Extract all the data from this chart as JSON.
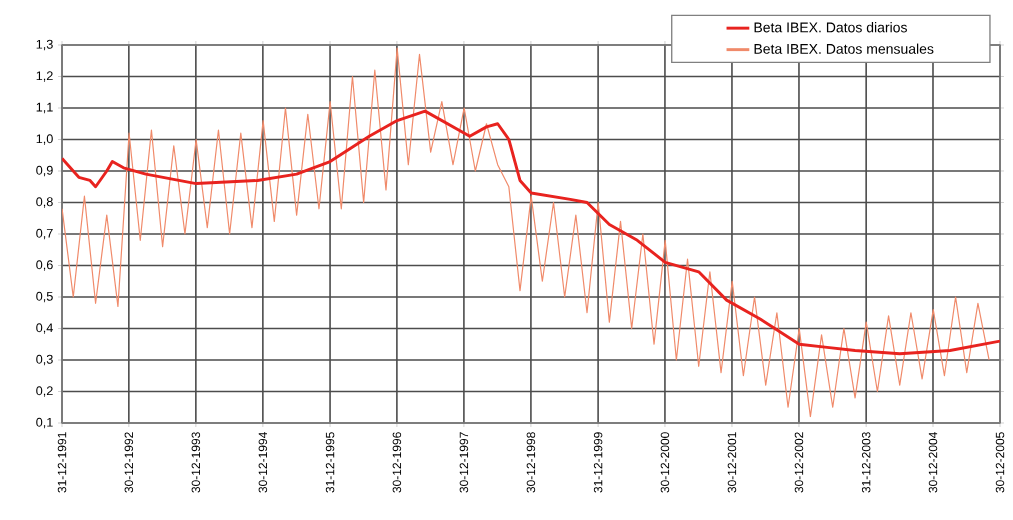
{
  "chart_data": {
    "type": "line",
    "legend": "top right",
    "grid": true,
    "marker": "none",
    "line_style": "solid",
    "xlim": [
      "1991-12-31",
      "2005-12-30"
    ],
    "xticks": [
      {
        "value": "1991-12-31",
        "label": "31-12-1991"
      },
      {
        "value": "1992-12-30",
        "label": "30-12-1992"
      },
      {
        "value": "1993-12-30",
        "label": "30-12-1993"
      },
      {
        "value": "1994-12-30",
        "label": "30-12-1994"
      },
      {
        "value": "1995-12-31",
        "label": "31-12-1995"
      },
      {
        "value": "1996-12-30",
        "label": "30-12-1996"
      },
      {
        "value": "1997-12-30",
        "label": "30-12-1997"
      },
      {
        "value": "1998-12-30",
        "label": "30-12-1998"
      },
      {
        "value": "1999-12-31",
        "label": "31-12-1999"
      },
      {
        "value": "2000-12-30",
        "label": "30-12-2000"
      },
      {
        "value": "2001-12-30",
        "label": "30-12-2001"
      },
      {
        "value": "2002-12-30",
        "label": "30-12-2002"
      },
      {
        "value": "2003-12-31",
        "label": "31-12-2003"
      },
      {
        "value": "2004-12-30",
        "label": "30-12-2004"
      },
      {
        "value": "2005-12-30",
        "label": "30-12-2005"
      }
    ],
    "ylim": [
      0.1,
      1.3
    ],
    "yticks": [
      {
        "value": 0.1,
        "label": "0,1"
      },
      {
        "value": 0.2,
        "label": "0,2"
      },
      {
        "value": 0.3,
        "label": "0,3"
      },
      {
        "value": 0.4,
        "label": "0,4"
      },
      {
        "value": 0.5,
        "label": "0,5"
      },
      {
        "value": 0.6,
        "label": "0,6"
      },
      {
        "value": 0.7,
        "label": "0,7"
      },
      {
        "value": 0.8,
        "label": "0,8"
      },
      {
        "value": 0.9,
        "label": "0,9"
      },
      {
        "value": 1.0,
        "label": "1,0"
      },
      {
        "value": 1.1,
        "label": "1,1"
      },
      {
        "value": 1.2,
        "label": "1,2"
      },
      {
        "value": 1.3,
        "label": "1,3"
      }
    ],
    "series": [
      {
        "name": "Beta IBEX. Datos diarios",
        "color": "#e8231f",
        "x": [
          "1992-01",
          "1992-02",
          "1992-04",
          "1992-06",
          "1992-07",
          "1992-09",
          "1992-10",
          "1992-12",
          "1993-04",
          "1994-01",
          "1994-12",
          "1995-07",
          "1996-01",
          "1996-08",
          "1997-01",
          "1997-06",
          "1997-10",
          "1998-02",
          "1998-05",
          "1998-07",
          "1998-09",
          "1998-11",
          "1999-01",
          "1999-08",
          "1999-11",
          "2000-03",
          "2000-08",
          "2001-01",
          "2001-07",
          "2001-12",
          "2002-06",
          "2003-01",
          "2003-06",
          "2003-11",
          "2004-07",
          "2005-04",
          "2005-12-30"
        ],
        "values": [
          0.94,
          0.92,
          0.88,
          0.87,
          0.85,
          0.9,
          0.93,
          0.91,
          0.89,
          0.86,
          0.87,
          0.89,
          0.93,
          1.01,
          1.06,
          1.09,
          1.05,
          1.01,
          1.04,
          1.05,
          1.0,
          0.87,
          0.83,
          0.81,
          0.8,
          0.73,
          0.68,
          0.61,
          0.58,
          0.49,
          0.43,
          0.35,
          0.34,
          0.33,
          0.32,
          0.33,
          0.36
        ]
      },
      {
        "name": "Beta IBEX. Datos mensuales",
        "color": "#f08a6a",
        "x": [
          "1992-01",
          "1992-03",
          "1992-05",
          "1992-07",
          "1992-09",
          "1992-11",
          "1993-01",
          "1993-03",
          "1993-05",
          "1993-07",
          "1993-09",
          "1993-11",
          "1994-01",
          "1994-03",
          "1994-05",
          "1994-07",
          "1994-09",
          "1994-11",
          "1995-01",
          "1995-03",
          "1995-05",
          "1995-07",
          "1995-09",
          "1995-11",
          "1996-01",
          "1996-03",
          "1996-05",
          "1996-07",
          "1996-09",
          "1996-11",
          "1997-01",
          "1997-03",
          "1997-05",
          "1997-07",
          "1997-09",
          "1997-11",
          "1998-01",
          "1998-03",
          "1998-05",
          "1998-07",
          "1998-09",
          "1998-11",
          "1999-01",
          "1999-03",
          "1999-05",
          "1999-07",
          "1999-09",
          "1999-11",
          "2000-01",
          "2000-03",
          "2000-05",
          "2000-07",
          "2000-09",
          "2000-11",
          "2001-01",
          "2001-03",
          "2001-05",
          "2001-07",
          "2001-09",
          "2001-11",
          "2002-01",
          "2002-03",
          "2002-05",
          "2002-07",
          "2002-09",
          "2002-11",
          "2003-01",
          "2003-03",
          "2003-05",
          "2003-07",
          "2003-09",
          "2003-11",
          "2004-01",
          "2004-03",
          "2004-05",
          "2004-07",
          "2004-09",
          "2004-11",
          "2005-01",
          "2005-03",
          "2005-05",
          "2005-07",
          "2005-09",
          "2005-11"
        ],
        "values": [
          0.78,
          0.5,
          0.82,
          0.48,
          0.76,
          0.47,
          1.02,
          0.68,
          1.03,
          0.66,
          0.98,
          0.7,
          1.0,
          0.72,
          1.03,
          0.7,
          1.02,
          0.72,
          1.06,
          0.74,
          1.1,
          0.76,
          1.08,
          0.78,
          1.12,
          0.78,
          1.2,
          0.8,
          1.22,
          0.84,
          1.29,
          0.92,
          1.27,
          0.96,
          1.12,
          0.92,
          1.1,
          0.9,
          1.05,
          0.92,
          0.85,
          0.52,
          0.82,
          0.55,
          0.8,
          0.5,
          0.76,
          0.45,
          0.8,
          0.42,
          0.74,
          0.4,
          0.7,
          0.35,
          0.68,
          0.3,
          0.62,
          0.28,
          0.58,
          0.26,
          0.55,
          0.25,
          0.5,
          0.22,
          0.45,
          0.15,
          0.4,
          0.12,
          0.38,
          0.15,
          0.4,
          0.18,
          0.42,
          0.2,
          0.44,
          0.22,
          0.45,
          0.24,
          0.46,
          0.25,
          0.5,
          0.26,
          0.48,
          0.3
        ]
      }
    ]
  }
}
